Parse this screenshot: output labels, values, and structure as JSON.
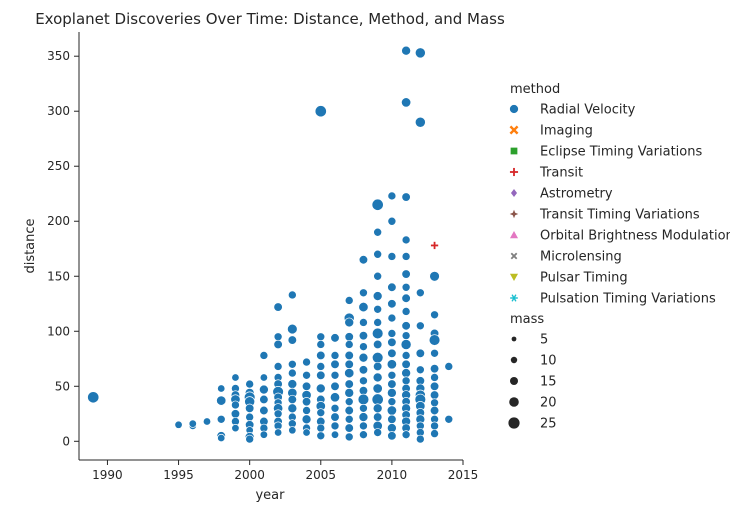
{
  "chart_data": {
    "type": "scatter",
    "title": "Exoplanet Discoveries Over Time: Distance, Method, and Mass",
    "xlabel": "year",
    "ylabel": "distance",
    "xlim": [
      1988,
      2015
    ],
    "ylim": [
      -17,
      372
    ],
    "xticks": [
      1990,
      1995,
      2000,
      2005,
      2010,
      2015
    ],
    "yticks": [
      0,
      50,
      100,
      150,
      200,
      250,
      300,
      350
    ],
    "grid": false,
    "legend_placement": "right",
    "legend": {
      "hue_title": "method",
      "size_title": "mass",
      "methods": [
        {
          "name": "Radial Velocity",
          "color": "#1f77b4",
          "marker": "circle"
        },
        {
          "name": "Imaging",
          "color": "#ff7f0e",
          "marker": "x"
        },
        {
          "name": "Eclipse Timing Variations",
          "color": "#2ca02c",
          "marker": "square"
        },
        {
          "name": "Transit",
          "color": "#d62728",
          "marker": "plus"
        },
        {
          "name": "Astrometry",
          "color": "#9467bd",
          "marker": "diamond"
        },
        {
          "name": "Transit Timing Variations",
          "color": "#8c564b",
          "marker": "star"
        },
        {
          "name": "Orbital Brightness Modulation",
          "color": "#e377c2",
          "marker": "triangle-up"
        },
        {
          "name": "Microlensing",
          "color": "#7f7f7f",
          "marker": "x-small"
        },
        {
          "name": "Pulsar Timing",
          "color": "#bcbd22",
          "marker": "triangle-down"
        },
        {
          "name": "Pulsation Timing Variations",
          "color": "#17becf",
          "marker": "asterisk"
        }
      ],
      "sizes": [
        {
          "label": "5",
          "value": 5
        },
        {
          "label": "10",
          "value": 10
        },
        {
          "label": "15",
          "value": 15
        },
        {
          "label": "20",
          "value": 20
        },
        {
          "label": "25",
          "value": 25
        }
      ]
    },
    "series": [
      {
        "name": "Radial Velocity",
        "points": [
          [
            1989,
            40,
            12
          ],
          [
            1995,
            15,
            2
          ],
          [
            1996,
            14,
            2
          ],
          [
            1996,
            16,
            2
          ],
          [
            1997,
            18,
            2
          ],
          [
            1998,
            48,
            2
          ],
          [
            1998,
            37,
            6
          ],
          [
            1998,
            20,
            3
          ],
          [
            1998,
            5,
            4
          ],
          [
            1998,
            3,
            2
          ],
          [
            1999,
            58,
            2
          ],
          [
            1999,
            48,
            3
          ],
          [
            1999,
            42,
            4
          ],
          [
            1999,
            38,
            6
          ],
          [
            1999,
            33,
            3
          ],
          [
            1999,
            25,
            4
          ],
          [
            1999,
            18,
            3
          ],
          [
            1999,
            12,
            2
          ],
          [
            2000,
            52,
            3
          ],
          [
            2000,
            44,
            5
          ],
          [
            2000,
            40,
            10
          ],
          [
            2000,
            36,
            8
          ],
          [
            2000,
            30,
            4
          ],
          [
            2000,
            22,
            3
          ],
          [
            2000,
            15,
            4
          ],
          [
            2000,
            10,
            2
          ],
          [
            2000,
            4,
            5
          ],
          [
            2000,
            2,
            3
          ],
          [
            2001,
            78,
            3
          ],
          [
            2001,
            58,
            2
          ],
          [
            2001,
            47,
            5
          ],
          [
            2001,
            38,
            4
          ],
          [
            2001,
            28,
            4
          ],
          [
            2001,
            18,
            4
          ],
          [
            2001,
            12,
            3
          ],
          [
            2001,
            6,
            2
          ],
          [
            2002,
            122,
            4
          ],
          [
            2002,
            95,
            3
          ],
          [
            2002,
            88,
            4
          ],
          [
            2002,
            68,
            3
          ],
          [
            2002,
            58,
            3
          ],
          [
            2002,
            52,
            4
          ],
          [
            2002,
            45,
            10
          ],
          [
            2002,
            40,
            4
          ],
          [
            2002,
            35,
            3
          ],
          [
            2002,
            30,
            6
          ],
          [
            2002,
            25,
            3
          ],
          [
            2002,
            18,
            4
          ],
          [
            2002,
            14,
            3
          ],
          [
            2002,
            8,
            2
          ],
          [
            2003,
            133,
            3
          ],
          [
            2003,
            102,
            7
          ],
          [
            2003,
            92,
            4
          ],
          [
            2003,
            70,
            3
          ],
          [
            2003,
            62,
            3
          ],
          [
            2003,
            52,
            5
          ],
          [
            2003,
            44,
            6
          ],
          [
            2003,
            38,
            4
          ],
          [
            2003,
            30,
            5
          ],
          [
            2003,
            22,
            3
          ],
          [
            2003,
            16,
            3
          ],
          [
            2003,
            10,
            2
          ],
          [
            2004,
            72,
            3
          ],
          [
            2004,
            60,
            3
          ],
          [
            2004,
            50,
            4
          ],
          [
            2004,
            42,
            6
          ],
          [
            2004,
            36,
            4
          ],
          [
            2004,
            28,
            3
          ],
          [
            2004,
            20,
            5
          ],
          [
            2004,
            12,
            3
          ],
          [
            2004,
            8,
            2
          ],
          [
            2005,
            300,
            12
          ],
          [
            2005,
            95,
            3
          ],
          [
            2005,
            88,
            3
          ],
          [
            2005,
            78,
            4
          ],
          [
            2005,
            68,
            3
          ],
          [
            2005,
            60,
            4
          ],
          [
            2005,
            48,
            5
          ],
          [
            2005,
            38,
            4
          ],
          [
            2005,
            32,
            6
          ],
          [
            2005,
            26,
            3
          ],
          [
            2005,
            18,
            4
          ],
          [
            2005,
            12,
            3
          ],
          [
            2005,
            5,
            3
          ],
          [
            2006,
            94,
            4
          ],
          [
            2006,
            78,
            3
          ],
          [
            2006,
            70,
            4
          ],
          [
            2006,
            60,
            3
          ],
          [
            2006,
            50,
            4
          ],
          [
            2006,
            40,
            6
          ],
          [
            2006,
            30,
            3
          ],
          [
            2006,
            22,
            4
          ],
          [
            2006,
            14,
            3
          ],
          [
            2006,
            6,
            2
          ],
          [
            2007,
            128,
            3
          ],
          [
            2007,
            112,
            8
          ],
          [
            2007,
            108,
            5
          ],
          [
            2007,
            95,
            4
          ],
          [
            2007,
            88,
            3
          ],
          [
            2007,
            78,
            4
          ],
          [
            2007,
            70,
            4
          ],
          [
            2007,
            62,
            6
          ],
          [
            2007,
            52,
            4
          ],
          [
            2007,
            44,
            5
          ],
          [
            2007,
            36,
            3
          ],
          [
            2007,
            28,
            4
          ],
          [
            2007,
            20,
            3
          ],
          [
            2007,
            12,
            4
          ],
          [
            2007,
            4,
            3
          ],
          [
            2008,
            165,
            4
          ],
          [
            2008,
            135,
            3
          ],
          [
            2008,
            122,
            6
          ],
          [
            2008,
            108,
            3
          ],
          [
            2008,
            96,
            4
          ],
          [
            2008,
            86,
            3
          ],
          [
            2008,
            76,
            5
          ],
          [
            2008,
            65,
            4
          ],
          [
            2008,
            55,
            3
          ],
          [
            2008,
            46,
            4
          ],
          [
            2008,
            38,
            10
          ],
          [
            2008,
            30,
            3
          ],
          [
            2008,
            22,
            5
          ],
          [
            2008,
            14,
            3
          ],
          [
            2008,
            6,
            3
          ],
          [
            2009,
            215,
            12
          ],
          [
            2009,
            190,
            3
          ],
          [
            2009,
            170,
            3
          ],
          [
            2009,
            150,
            3
          ],
          [
            2009,
            132,
            5
          ],
          [
            2009,
            120,
            3
          ],
          [
            2009,
            108,
            3
          ],
          [
            2009,
            98,
            10
          ],
          [
            2009,
            88,
            4
          ],
          [
            2009,
            76,
            10
          ],
          [
            2009,
            68,
            4
          ],
          [
            2009,
            58,
            5
          ],
          [
            2009,
            48,
            6
          ],
          [
            2009,
            38,
            12
          ],
          [
            2009,
            30,
            5
          ],
          [
            2009,
            22,
            4
          ],
          [
            2009,
            14,
            6
          ],
          [
            2009,
            8,
            3
          ],
          [
            2010,
            223,
            3
          ],
          [
            2010,
            200,
            3
          ],
          [
            2010,
            168,
            3
          ],
          [
            2010,
            140,
            4
          ],
          [
            2010,
            125,
            4
          ],
          [
            2010,
            112,
            3
          ],
          [
            2010,
            98,
            3
          ],
          [
            2010,
            90,
            4
          ],
          [
            2010,
            80,
            4
          ],
          [
            2010,
            70,
            6
          ],
          [
            2010,
            60,
            3
          ],
          [
            2010,
            52,
            4
          ],
          [
            2010,
            44,
            5
          ],
          [
            2010,
            36,
            3
          ],
          [
            2010,
            28,
            6
          ],
          [
            2010,
            20,
            4
          ],
          [
            2010,
            12,
            5
          ],
          [
            2010,
            5,
            4
          ],
          [
            2011,
            355,
            5
          ],
          [
            2011,
            308,
            6
          ],
          [
            2011,
            222,
            4
          ],
          [
            2011,
            183,
            3
          ],
          [
            2011,
            168,
            3
          ],
          [
            2011,
            152,
            4
          ],
          [
            2011,
            140,
            3
          ],
          [
            2011,
            130,
            4
          ],
          [
            2011,
            118,
            3
          ],
          [
            2011,
            105,
            4
          ],
          [
            2011,
            96,
            3
          ],
          [
            2011,
            88,
            8
          ],
          [
            2011,
            78,
            3
          ],
          [
            2011,
            70,
            4
          ],
          [
            2011,
            62,
            5
          ],
          [
            2011,
            55,
            3
          ],
          [
            2011,
            48,
            4
          ],
          [
            2011,
            42,
            5
          ],
          [
            2011,
            36,
            4
          ],
          [
            2011,
            30,
            5
          ],
          [
            2011,
            24,
            4
          ],
          [
            2011,
            18,
            5
          ],
          [
            2011,
            12,
            4
          ],
          [
            2011,
            6,
            3
          ],
          [
            2012,
            353,
            8
          ],
          [
            2012,
            290,
            8
          ],
          [
            2012,
            135,
            3
          ],
          [
            2012,
            105,
            3
          ],
          [
            2012,
            80,
            4
          ],
          [
            2012,
            65,
            3
          ],
          [
            2012,
            55,
            4
          ],
          [
            2012,
            48,
            5
          ],
          [
            2012,
            42,
            8
          ],
          [
            2012,
            38,
            10
          ],
          [
            2012,
            32,
            6
          ],
          [
            2012,
            26,
            4
          ],
          [
            2012,
            20,
            5
          ],
          [
            2012,
            14,
            3
          ],
          [
            2012,
            8,
            3
          ],
          [
            2012,
            2,
            3
          ],
          [
            2013,
            150,
            7
          ],
          [
            2013,
            115,
            3
          ],
          [
            2013,
            98,
            4
          ],
          [
            2013,
            92,
            10
          ],
          [
            2013,
            80,
            3
          ],
          [
            2013,
            66,
            4
          ],
          [
            2013,
            58,
            3
          ],
          [
            2013,
            50,
            4
          ],
          [
            2013,
            42,
            4
          ],
          [
            2013,
            35,
            3
          ],
          [
            2013,
            28,
            4
          ],
          [
            2013,
            20,
            3
          ],
          [
            2013,
            14,
            3
          ],
          [
            2013,
            7,
            3
          ],
          [
            2014,
            68,
            3
          ],
          [
            2014,
            20,
            3
          ]
        ]
      },
      {
        "name": "Transit",
        "points": [
          [
            2013,
            178,
            3
          ]
        ]
      }
    ]
  }
}
